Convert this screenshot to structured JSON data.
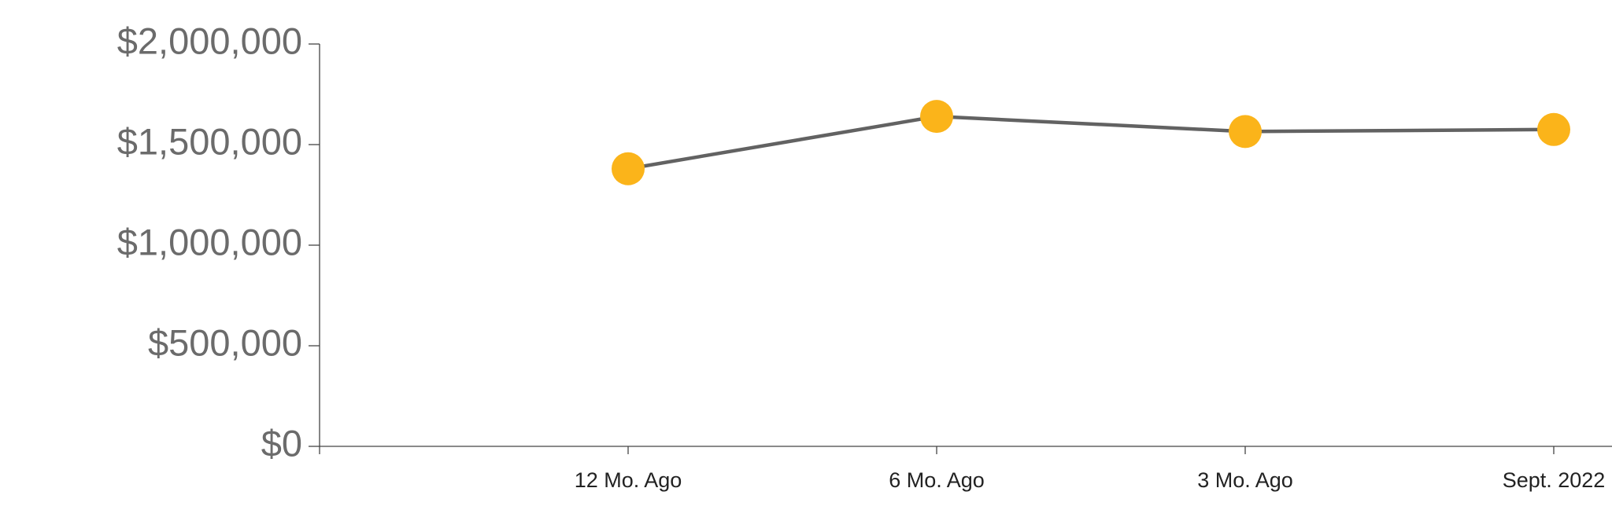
{
  "chart_data": {
    "type": "line",
    "categories": [
      null,
      "12 Mo. Ago",
      "6 Mo. Ago",
      "3 Mo. Ago",
      "Sept. 2022"
    ],
    "series": [
      {
        "color": "#626262",
        "marker_color": "#fbb41a",
        "values": [
          null,
          1380000,
          1640000,
          1565000,
          1575000
        ]
      }
    ],
    "ylim": [
      0,
      2000000
    ],
    "yticks": [
      {
        "value": 0,
        "label": "$0"
      },
      {
        "value": 500000,
        "label": "$500,000"
      },
      {
        "value": 1000000,
        "label": "$1,000,000"
      },
      {
        "value": 1500000,
        "label": "$1,500,000"
      },
      {
        "value": 2000000,
        "label": "$2,000,000"
      }
    ]
  }
}
